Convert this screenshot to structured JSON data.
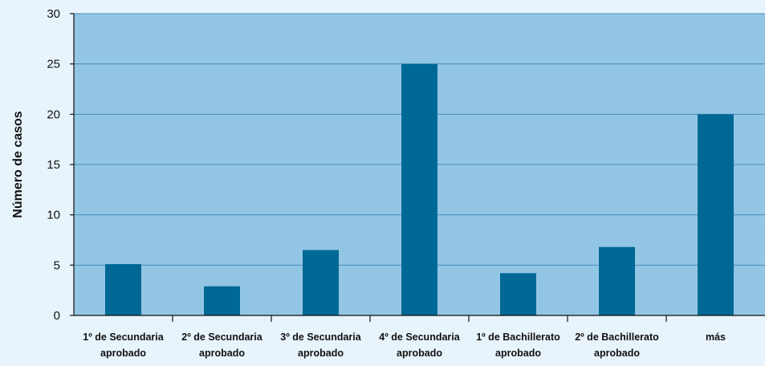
{
  "chart_data": {
    "type": "bar",
    "title": "",
    "xlabel": "",
    "ylabel": "Número de casos",
    "ylim": [
      0,
      30
    ],
    "yticks": [
      0,
      5,
      10,
      15,
      20,
      25,
      30
    ],
    "grid": true,
    "categories": [
      [
        "1º de Secundaria",
        "aprobado"
      ],
      [
        "2º de Secundaria",
        "aprobado"
      ],
      [
        "3º de Secundaria",
        "aprobado"
      ],
      [
        "4º de Secundaria",
        "aprobado"
      ],
      [
        "1º de Bachillerato",
        "aprobado"
      ],
      [
        "2º de Bachillerato",
        "aprobado"
      ],
      [
        "más"
      ]
    ],
    "values": [
      5.1,
      2.9,
      6.5,
      25,
      4.2,
      6.8,
      20
    ],
    "colors": {
      "page_background": "#e8f4fb",
      "plot_background": "#93c6e5",
      "bar": "#006894",
      "gridline": "#4a8dbd",
      "axis": "#111111"
    }
  }
}
